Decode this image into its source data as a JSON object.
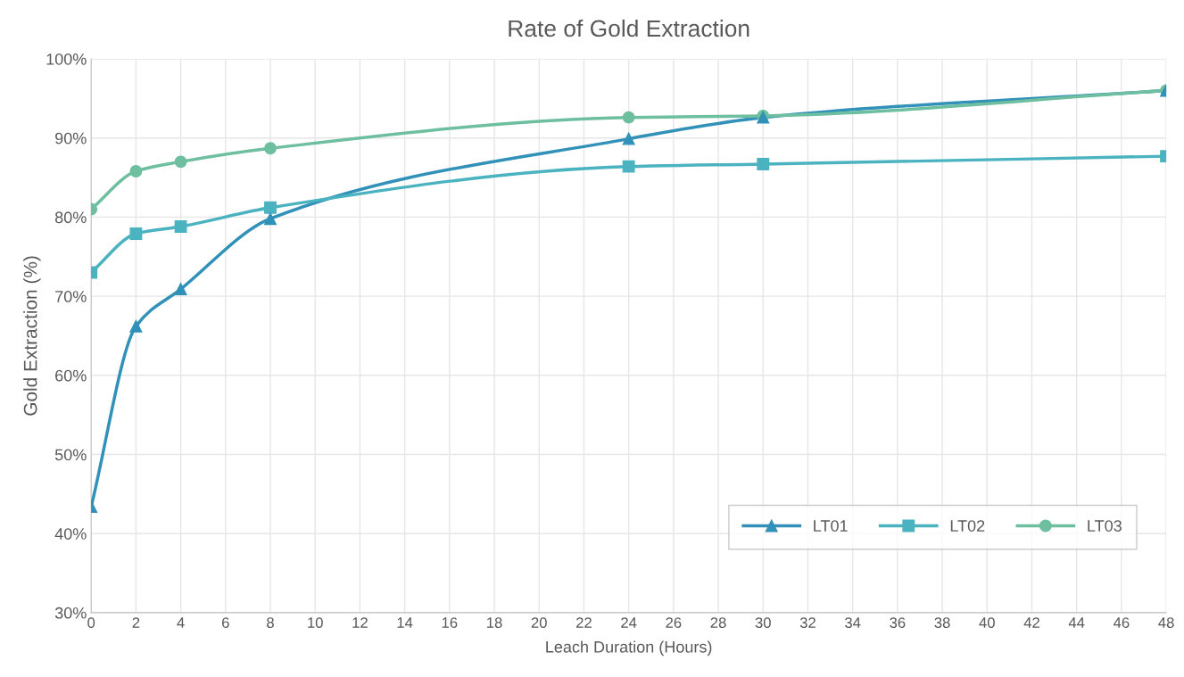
{
  "chart_data": {
    "type": "line",
    "title": "Rate of Gold Extraction",
    "xlabel": "Leach Duration (Hours)",
    "ylabel": "Gold Extraction (%)",
    "x": [
      0,
      2,
      4,
      8,
      24,
      30,
      48
    ],
    "series": [
      {
        "name": "LT01",
        "color": "#3191b8",
        "marker": "triangle",
        "values": [
          43.4,
          66.2,
          70.9,
          79.8,
          89.9,
          92.6,
          96.0
        ]
      },
      {
        "name": "LT02",
        "color": "#4bb3c0",
        "marker": "square",
        "values": [
          73.0,
          77.9,
          78.8,
          81.2,
          86.4,
          86.7,
          87.7
        ]
      },
      {
        "name": "LT03",
        "color": "#6dbf9f",
        "marker": "circle",
        "values": [
          81.0,
          85.8,
          87.0,
          88.7,
          92.6,
          92.8,
          96.0
        ]
      }
    ],
    "xlim": [
      0,
      48
    ],
    "xticks": [
      0,
      2,
      4,
      6,
      8,
      10,
      12,
      14,
      16,
      18,
      20,
      22,
      24,
      26,
      28,
      30,
      32,
      34,
      36,
      38,
      40,
      42,
      44,
      46,
      48
    ],
    "ylim": [
      30,
      100
    ],
    "yticks": [
      {
        "value": 30,
        "label": "30%"
      },
      {
        "value": 40,
        "label": "40%"
      },
      {
        "value": 50,
        "label": "50%"
      },
      {
        "value": 60,
        "label": "60%"
      },
      {
        "value": 70,
        "label": "70%"
      },
      {
        "value": 80,
        "label": "80%"
      },
      {
        "value": 90,
        "label": "90%"
      },
      {
        "value": 100,
        "label": "100%"
      }
    ],
    "grid": true,
    "legend": "bottom right",
    "line_style": "solid"
  }
}
